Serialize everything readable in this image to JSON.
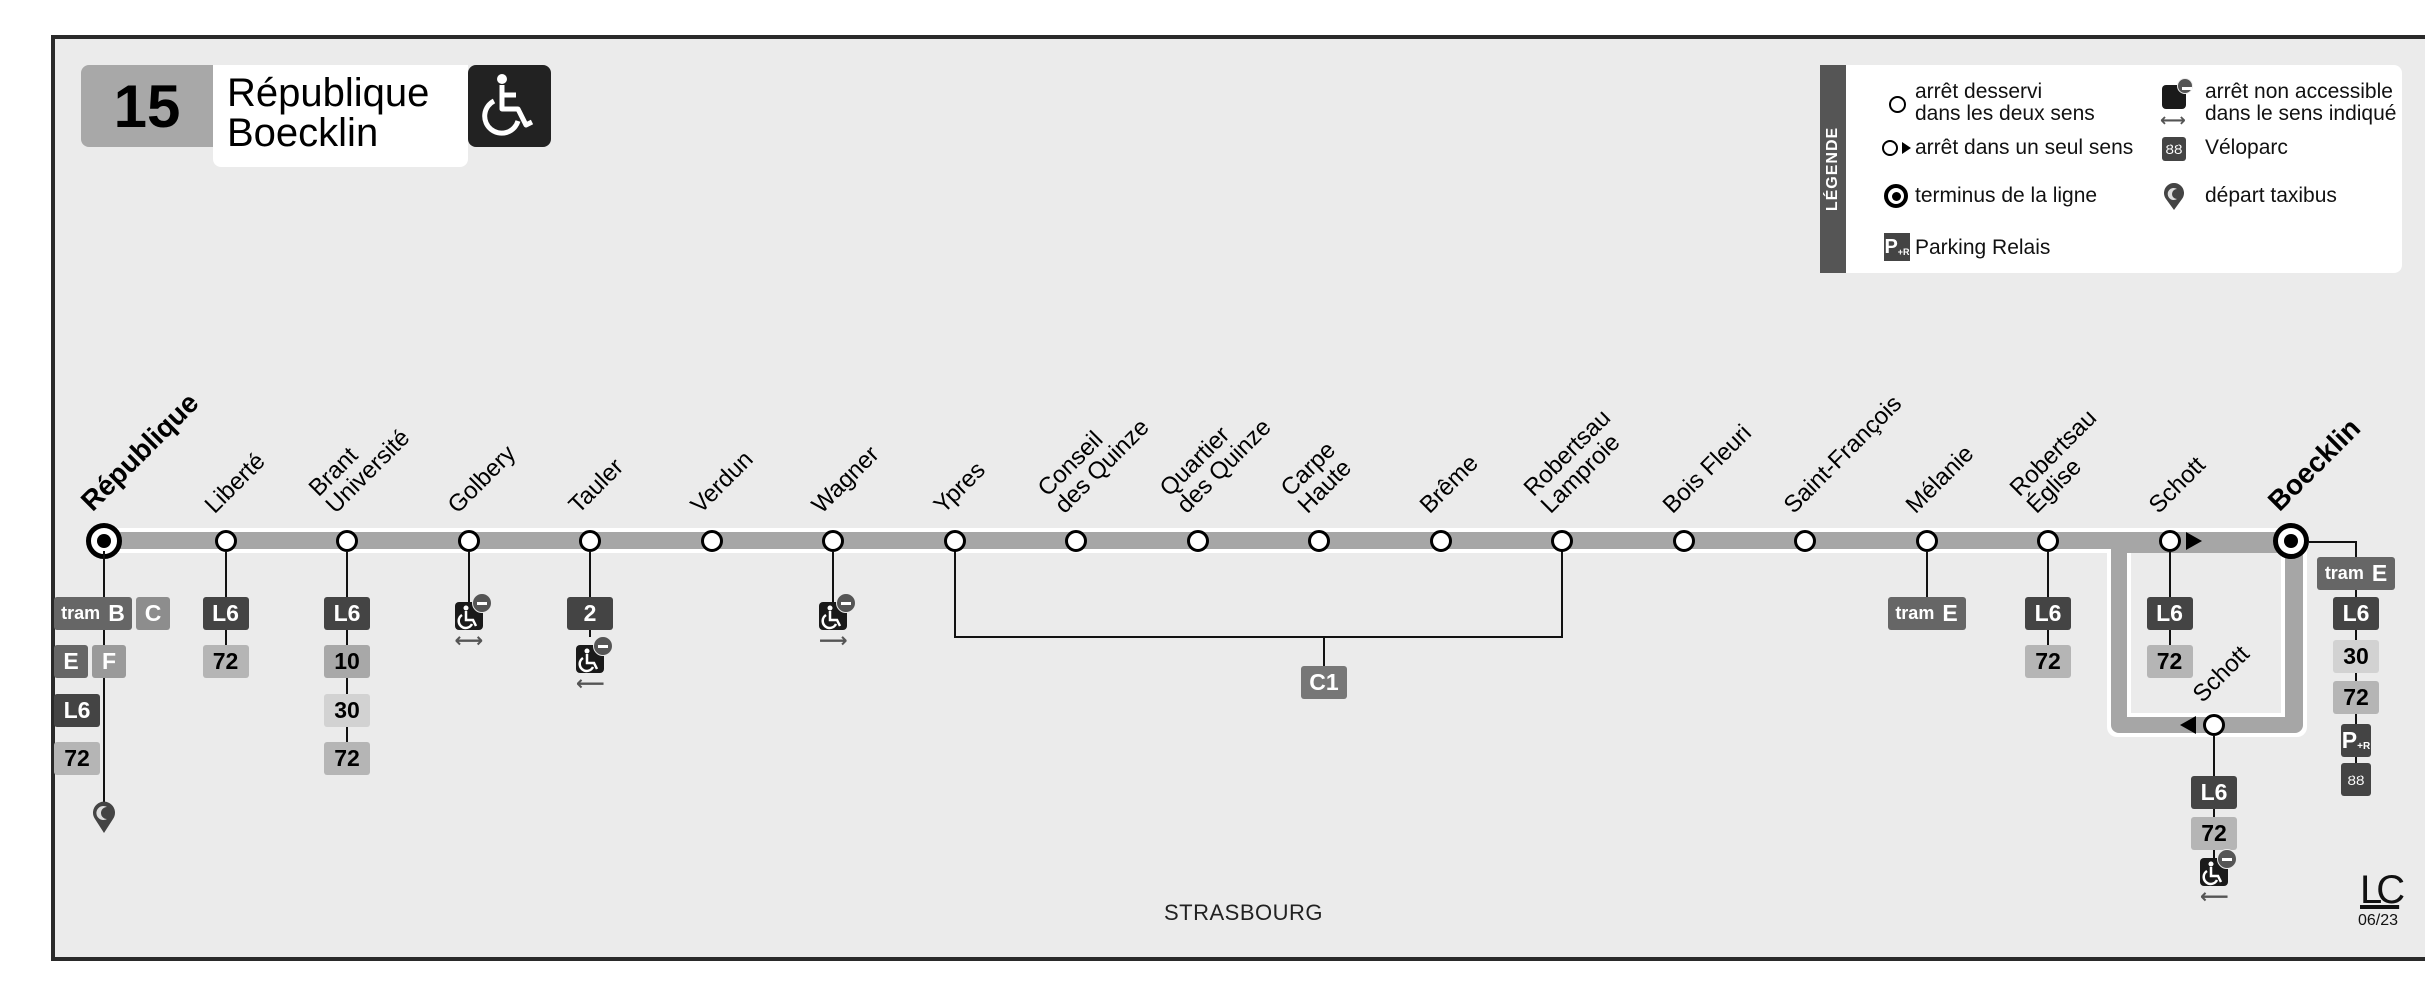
{
  "header": {
    "line_number": "15",
    "title_line1": "République",
    "title_line2": "Boecklin",
    "accessibility_icon": "wheelchair-icon"
  },
  "legend": {
    "title": "LÉGENDE",
    "items": [
      {
        "icon": "stop-circle-icon",
        "label_line1": "arrêt desservi",
        "label_line2": "dans les deux sens"
      },
      {
        "icon": "one-way-stop-icon",
        "label_line1": "arrêt dans un seul sens"
      },
      {
        "icon": "terminus-icon",
        "label_line1": "terminus de la ligne"
      },
      {
        "icon": "park-and-ride-icon",
        "label_line1": "Parking Relais"
      },
      {
        "icon": "not-accessible-icon",
        "label_line1": "arrêt non accessible",
        "label_line2": "dans le sens indiqué"
      },
      {
        "icon": "bike-parking-icon",
        "label_line1": "Véloparc"
      },
      {
        "icon": "taxibus-icon",
        "label_line1": "départ taxibus"
      }
    ]
  },
  "stops": [
    {
      "name": "République",
      "terminus": true,
      "connections": [
        [
          "tram B",
          "C"
        ],
        [
          "E",
          "F"
        ],
        [
          "L6"
        ],
        [
          "72"
        ]
      ],
      "extras": [
        "taxibus"
      ]
    },
    {
      "name": "Liberté",
      "connections": [
        [
          "L6"
        ],
        [
          "72"
        ]
      ]
    },
    {
      "name": "Brant\nUniversité",
      "connections": [
        [
          "L6"
        ],
        [
          "10"
        ],
        [
          "30"
        ],
        [
          "72"
        ]
      ]
    },
    {
      "name": "Golbery",
      "accessibility": "both"
    },
    {
      "name": "Tauler",
      "connections": [
        [
          "2"
        ]
      ],
      "accessibility": "left"
    },
    {
      "name": "Verdun"
    },
    {
      "name": "Wagner",
      "accessibility": "right"
    },
    {
      "name": "Ypres"
    },
    {
      "name": "Conseil\ndes Quinze"
    },
    {
      "name": "Quartier\ndes Quinze"
    },
    {
      "name": "Carpe\nHaute"
    },
    {
      "name": "Brême"
    },
    {
      "name": "Robertsau\nLamproie"
    },
    {
      "name": "Bois Fleuri"
    },
    {
      "name": "Saint-François"
    },
    {
      "name": "Mélanie",
      "connections": [
        [
          "tram E"
        ]
      ]
    },
    {
      "name": "Robertsau\nÉglise",
      "connections": [
        [
          "L6"
        ],
        [
          "72"
        ]
      ]
    },
    {
      "name": "Schott",
      "direction": "right",
      "connections": [
        [
          "L6"
        ],
        [
          "72"
        ]
      ]
    },
    {
      "name": "Boecklin",
      "terminus": true,
      "connections": [
        [
          "tram E"
        ],
        [
          "L6"
        ],
        [
          "30"
        ],
        [
          "72"
        ],
        [
          "P+R"
        ],
        [
          "velo"
        ]
      ]
    }
  ],
  "loop_stop": {
    "name": "Schott",
    "direction": "left",
    "connections": [
      [
        "L6"
      ],
      [
        "72"
      ]
    ],
    "accessibility": "left"
  },
  "shared_connection": {
    "label": "C1",
    "from_stop": "Ypres",
    "to_stop": "Robertsau Lamproie"
  },
  "footer": {
    "city": "STRASBOURG",
    "logo": "LC",
    "date": "06/23"
  },
  "colors": {
    "background": "#ebebeb",
    "line_band": "#a6a6a6",
    "frame": "#2a2a2a"
  }
}
